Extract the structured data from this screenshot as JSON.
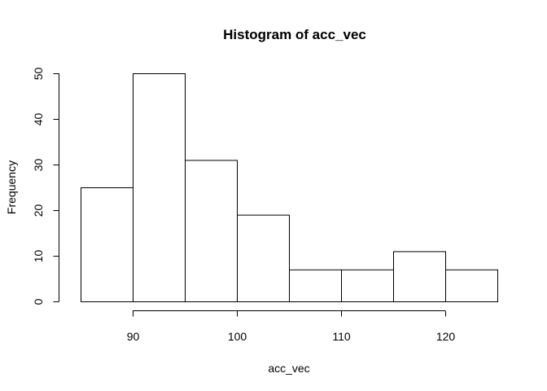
{
  "chart_data": {
    "type": "bar",
    "title": "Histogram of acc_vec",
    "xlabel": "acc_vec",
    "ylabel": "Frequency",
    "bins": [
      {
        "start": 85,
        "end": 90,
        "count": 25
      },
      {
        "start": 90,
        "end": 95,
        "count": 50
      },
      {
        "start": 95,
        "end": 100,
        "count": 31
      },
      {
        "start": 100,
        "end": 105,
        "count": 19
      },
      {
        "start": 105,
        "end": 110,
        "count": 7
      },
      {
        "start": 110,
        "end": 115,
        "count": 7
      },
      {
        "start": 115,
        "end": 120,
        "count": 11
      },
      {
        "start": 120,
        "end": 125,
        "count": 7
      }
    ],
    "xticks": [
      90,
      100,
      110,
      120
    ],
    "yticks": [
      0,
      10,
      20,
      30,
      40,
      50
    ],
    "xlim": [
      85,
      125
    ],
    "ylim": [
      0,
      50
    ],
    "grid": false,
    "bar_fill": "#ffffff",
    "bar_stroke": "#000000"
  }
}
